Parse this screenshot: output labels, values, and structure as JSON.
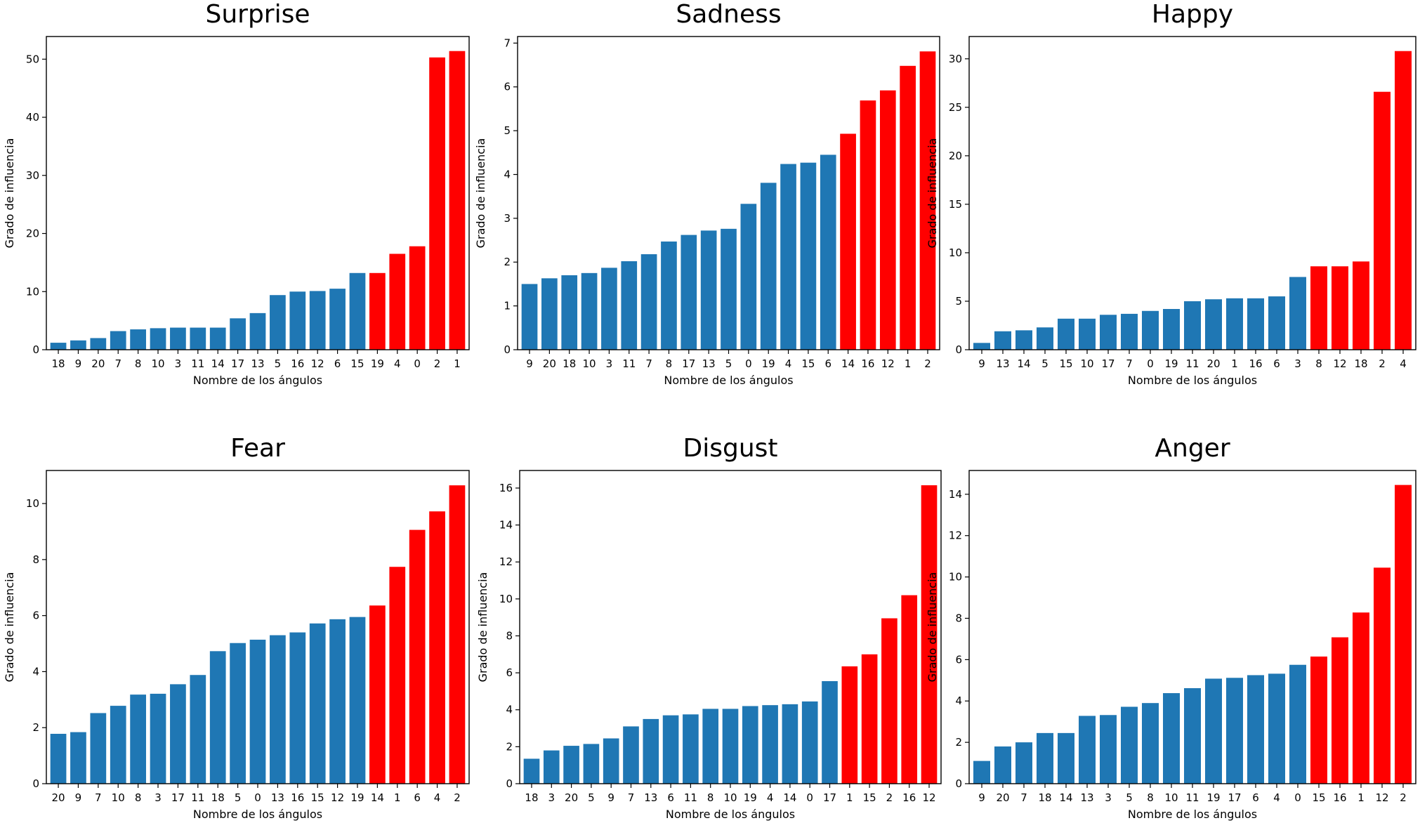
{
  "chart_data": [
    {
      "type": "bar",
      "title": "Surprise",
      "xlabel": "Nombre de los ángulos",
      "ylabel": "Grado de influencia",
      "ylim": [
        0,
        53.9
      ],
      "yticks": [
        0,
        10,
        20,
        30,
        40,
        50
      ],
      "categories": [
        "18",
        "9",
        "20",
        "7",
        "8",
        "10",
        "3",
        "11",
        "14",
        "17",
        "13",
        "5",
        "16",
        "12",
        "6",
        "15",
        "19",
        "4",
        "0",
        "2",
        "1"
      ],
      "values": [
        1.2,
        1.6,
        2.0,
        3.2,
        3.5,
        3.7,
        3.8,
        3.8,
        3.8,
        5.4,
        6.3,
        9.4,
        10.0,
        10.1,
        10.5,
        13.2,
        13.2,
        16.5,
        17.8,
        50.3,
        51.4
      ],
      "highlight_from_index": 16,
      "colors": {
        "normal": "#1f77b4",
        "highlight": "#ff0000"
      }
    },
    {
      "type": "bar",
      "title": "Sadness",
      "xlabel": "Nombre de los ángulos",
      "ylabel": "Grado de influencia",
      "ylim": [
        0,
        7.15
      ],
      "yticks": [
        0,
        1,
        2,
        3,
        4,
        5,
        6,
        7
      ],
      "categories": [
        "9",
        "20",
        "18",
        "10",
        "3",
        "11",
        "7",
        "8",
        "17",
        "13",
        "5",
        "0",
        "19",
        "4",
        "15",
        "6",
        "14",
        "16",
        "12",
        "1",
        "2"
      ],
      "values": [
        1.5,
        1.63,
        1.7,
        1.75,
        1.87,
        2.02,
        2.18,
        2.47,
        2.62,
        2.72,
        2.76,
        3.33,
        3.81,
        4.24,
        4.27,
        4.45,
        4.93,
        5.69,
        5.92,
        6.48,
        6.81
      ],
      "highlight_from_index": 16,
      "colors": {
        "normal": "#1f77b4",
        "highlight": "#ff0000"
      }
    },
    {
      "type": "bar",
      "title": "Happy",
      "xlabel": "Nombre de los ángulos",
      "ylabel": "Grado de influencia",
      "ylim": [
        0,
        32.3
      ],
      "yticks": [
        0,
        5,
        10,
        15,
        20,
        25,
        30
      ],
      "categories": [
        "9",
        "13",
        "14",
        "5",
        "15",
        "10",
        "17",
        "7",
        "0",
        "19",
        "11",
        "20",
        "1",
        "16",
        "6",
        "3",
        "8",
        "12",
        "18",
        "2",
        "4"
      ],
      "values": [
        0.7,
        1.9,
        2.0,
        2.3,
        3.2,
        3.2,
        3.6,
        3.7,
        4.0,
        4.2,
        5.0,
        5.2,
        5.3,
        5.3,
        5.5,
        7.5,
        8.6,
        8.6,
        9.1,
        26.6,
        30.8
      ],
      "highlight_from_index": 16,
      "colors": {
        "normal": "#1f77b4",
        "highlight": "#ff0000"
      }
    },
    {
      "type": "bar",
      "title": "Fear",
      "xlabel": "Nombre de los ángulos",
      "ylabel": "Grado de influencia",
      "ylim": [
        0,
        11.18
      ],
      "yticks": [
        0,
        2,
        4,
        6,
        8,
        10
      ],
      "categories": [
        "20",
        "9",
        "7",
        "10",
        "8",
        "3",
        "17",
        "11",
        "18",
        "5",
        "0",
        "13",
        "16",
        "15",
        "12",
        "19",
        "14",
        "1",
        "6",
        "4",
        "2"
      ],
      "values": [
        1.78,
        1.84,
        2.52,
        2.78,
        3.18,
        3.21,
        3.55,
        3.88,
        4.73,
        5.02,
        5.14,
        5.3,
        5.4,
        5.72,
        5.87,
        5.95,
        6.36,
        7.74,
        9.06,
        9.72,
        10.65
      ],
      "highlight_from_index": 16,
      "colors": {
        "normal": "#1f77b4",
        "highlight": "#ff0000"
      }
    },
    {
      "type": "bar",
      "title": "Disgust",
      "xlabel": "Nombre de los ángulos",
      "ylabel": "Grado de influencia",
      "ylim": [
        0,
        16.95
      ],
      "yticks": [
        0,
        2,
        4,
        6,
        8,
        10,
        12,
        14,
        16
      ],
      "categories": [
        "18",
        "3",
        "20",
        "5",
        "9",
        "7",
        "13",
        "6",
        "11",
        "8",
        "10",
        "19",
        "4",
        "14",
        "0",
        "17",
        "1",
        "15",
        "2",
        "16",
        "12"
      ],
      "values": [
        1.35,
        1.8,
        2.05,
        2.15,
        2.45,
        3.1,
        3.5,
        3.7,
        3.75,
        4.05,
        4.05,
        4.2,
        4.25,
        4.3,
        4.45,
        5.55,
        6.35,
        7.0,
        8.95,
        10.2,
        16.15
      ],
      "highlight_from_index": 16,
      "colors": {
        "normal": "#1f77b4",
        "highlight": "#ff0000"
      }
    },
    {
      "type": "bar",
      "title": "Anger",
      "xlabel": "Nombre de los ángulos",
      "ylabel": "Grado de influencia",
      "ylim": [
        0,
        15.15
      ],
      "yticks": [
        0,
        2,
        4,
        6,
        8,
        10,
        12,
        14
      ],
      "categories": [
        "9",
        "20",
        "7",
        "18",
        "14",
        "13",
        "3",
        "5",
        "8",
        "10",
        "11",
        "19",
        "17",
        "6",
        "4",
        "0",
        "15",
        "16",
        "1",
        "12",
        "2"
      ],
      "values": [
        1.1,
        1.8,
        2.0,
        2.45,
        2.45,
        3.28,
        3.32,
        3.72,
        3.9,
        4.38,
        4.62,
        5.08,
        5.12,
        5.25,
        5.32,
        5.75,
        6.15,
        7.08,
        8.28,
        10.45,
        14.45
      ],
      "highlight_from_index": 16,
      "colors": {
        "normal": "#1f77b4",
        "highlight": "#ff0000"
      }
    }
  ]
}
